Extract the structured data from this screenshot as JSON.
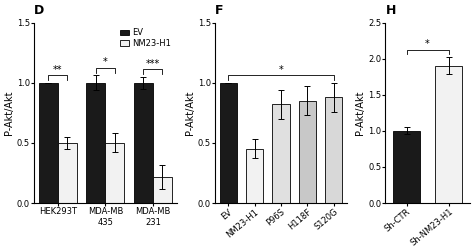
{
  "chart_data": [
    {
      "type": "bar",
      "title": "D",
      "categories": [
        "HEK293T",
        "MDA-MB\n435",
        "MDA-MB\n231"
      ],
      "y_label": "P-Akt/Akt",
      "series": [
        {
          "name": "EV",
          "color": "#1a1a1a",
          "values": [
            1.0,
            1.0,
            1.0
          ],
          "errors": [
            0.0,
            0.06,
            0.05
          ]
        },
        {
          "name": "NM23-H1",
          "color": "#f2f2f2",
          "values": [
            0.5,
            0.5,
            0.22
          ],
          "errors": [
            0.05,
            0.08,
            0.1
          ]
        }
      ],
      "ylim": [
        0,
        1.5
      ],
      "yticks": [
        0.0,
        0.5,
        1.0,
        1.5
      ],
      "legend": "upper right",
      "annotations": [
        {
          "text": "**",
          "categories": [
            "HEK293T"
          ]
        },
        {
          "text": "*",
          "categories": [
            "MDA-MB\n435"
          ]
        },
        {
          "text": "***",
          "categories": [
            "MDA-MB\n231"
          ]
        }
      ]
    },
    {
      "type": "bar",
      "title": "F",
      "categories": [
        "EV",
        "NM23-H1",
        "P96S",
        "H118F",
        "S120G"
      ],
      "y_label": "P-Akt/Akt",
      "values": [
        1.0,
        0.45,
        0.82,
        0.85,
        0.88
      ],
      "errors": [
        0.0,
        0.08,
        0.12,
        0.12,
        0.12
      ],
      "colors": [
        "#1a1a1a",
        "#f2f2f2",
        "#e0e0e0",
        "#c8c8c8",
        "#d8d8d8"
      ],
      "ylim": [
        0,
        1.5
      ],
      "yticks": [
        0.0,
        0.5,
        1.0,
        1.5
      ],
      "annotations": [
        {
          "text": "*",
          "categories": [
            "EV",
            "S120G"
          ]
        }
      ]
    },
    {
      "type": "bar",
      "title": "H",
      "categories": [
        "Sh-CTR",
        "Sh-NM23-H1"
      ],
      "y_label": "P-Akt/Akt",
      "values": [
        1.0,
        1.9
      ],
      "errors": [
        0.05,
        0.12
      ],
      "colors": [
        "#1a1a1a",
        "#f2f2f2"
      ],
      "ylim": [
        0,
        2.5
      ],
      "yticks": [
        0.0,
        0.5,
        1.0,
        1.5,
        2.0,
        2.5
      ],
      "annotations": [
        {
          "text": "*",
          "categories": [
            "Sh-CTR",
            "Sh-NM23-H1"
          ]
        }
      ]
    }
  ]
}
